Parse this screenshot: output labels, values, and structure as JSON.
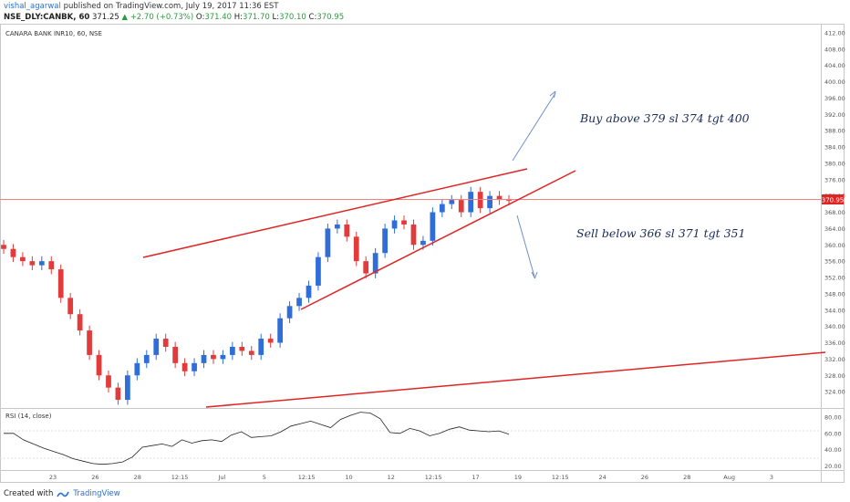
{
  "header": {
    "author": "vishal_agarwal",
    "published": "published on TradingView.com, July 19, 2017 11:36 EST",
    "symbol": "NSE_DLY:CANBK, 60",
    "last": "371.25",
    "change_up_icon": "triangle-up-icon",
    "change": "+2.70 (+0.73%)",
    "o_label": "O:",
    "o_value": "371.40",
    "h_label": "H:",
    "h_value": "371.70",
    "l_label": "L:",
    "l_value": "370.10",
    "c_label": "C:",
    "c_value": "370.95"
  },
  "pane": {
    "title": "CANARA BANK INR10, 60, NSE",
    "price_label": "370.95"
  },
  "rsi": {
    "title": "RSI (14, close)"
  },
  "annotations": {
    "buy": "Buy above 379 sl 374 tgt 400",
    "sell": "Sell below 366  sl 371 tgt 351"
  },
  "footer": {
    "created_with": "Created with",
    "brand": "TradingView"
  },
  "colors": {
    "up": "#2f6ed8",
    "down": "#e23b3b",
    "trendline": "#e02424",
    "arrow": "#6f8fc8",
    "price_line": "#f08080",
    "rsi_line": "#222222"
  },
  "chart_data": [
    {
      "type": "candlestick",
      "ylim": [
        320,
        414
      ],
      "y_ticks": [
        "412.00",
        "408.00",
        "404.00",
        "400.00",
        "396.00",
        "392.00",
        "388.00",
        "384.00",
        "380.00",
        "376.00",
        "372.00",
        "368.00",
        "364.00",
        "360.00",
        "356.00",
        "352.00",
        "348.00",
        "344.00",
        "340.00",
        "336.00",
        "332.00",
        "328.00",
        "324.00"
      ],
      "x_ticks": [
        "23",
        "26",
        "28",
        "12:15",
        "Jul",
        "5",
        "12:15",
        "10",
        "12",
        "12:15",
        "17",
        "19",
        "12:15",
        "24",
        "26",
        "28",
        "Aug",
        "3"
      ],
      "last_price": 370.95,
      "close_path": [
        359,
        357,
        356,
        355,
        356,
        354,
        347,
        343,
        339,
        333,
        328,
        325,
        322,
        328,
        331,
        333,
        337,
        335,
        331,
        329,
        331,
        333,
        332,
        333,
        335,
        334,
        333,
        337,
        336,
        342,
        345,
        347,
        350,
        357,
        364,
        365,
        362,
        356,
        353,
        358,
        364,
        366,
        365,
        360,
        361,
        368,
        370,
        371,
        368,
        373,
        369,
        372,
        371,
        370.95
      ]
    },
    {
      "type": "line",
      "title": "RSI (14, close)",
      "ylim": [
        15,
        90
      ],
      "y_ticks": [
        "80.00",
        "60.00",
        "40.00",
        "20.00"
      ],
      "values": [
        60,
        60,
        52,
        47,
        42,
        38,
        34,
        29,
        26,
        23,
        22,
        23,
        25,
        31,
        43,
        45,
        47,
        44,
        52,
        48,
        51,
        52,
        50,
        58,
        62,
        55,
        56,
        57,
        62,
        69,
        72,
        75,
        71,
        67,
        77,
        82,
        86,
        85,
        78,
        61,
        60,
        66,
        63,
        57,
        60,
        65,
        68,
        64,
        63,
        62,
        63,
        59
      ]
    }
  ]
}
